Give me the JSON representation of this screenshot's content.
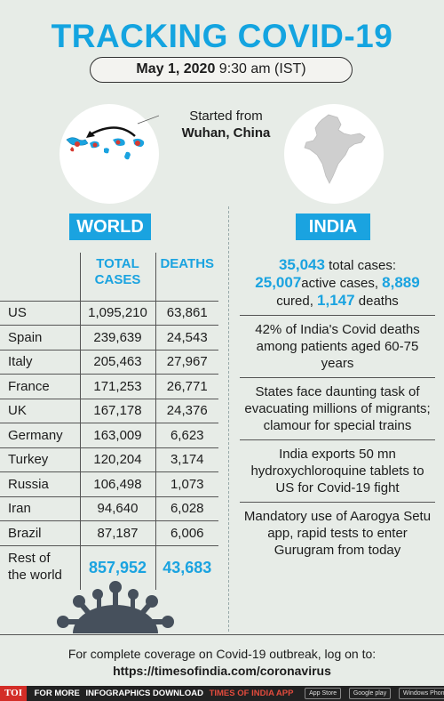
{
  "header": {
    "title": "TRACKING COVID-19",
    "date": "May 1, 2020",
    "time": "9:30 am (IST)"
  },
  "origin": {
    "line1": "Started from",
    "line2": "Wuhan, China"
  },
  "world": {
    "label": "WORLD",
    "columns": {
      "total_line1": "TOTAL",
      "total_line2": "CASES",
      "deaths": "DEATHS"
    },
    "rows": [
      {
        "country": "US",
        "total": "1,095,210",
        "deaths": "63,861"
      },
      {
        "country": "Spain",
        "total": "239,639",
        "deaths": "24,543"
      },
      {
        "country": "Italy",
        "total": "205,463",
        "deaths": "27,967"
      },
      {
        "country": "France",
        "total": "171,253",
        "deaths": "26,771"
      },
      {
        "country": "UK",
        "total": "167,178",
        "deaths": "24,376"
      },
      {
        "country": "Germany",
        "total": "163,009",
        "deaths": "6,623"
      },
      {
        "country": "Turkey",
        "total": "120,204",
        "deaths": "3,174"
      },
      {
        "country": "Russia",
        "total": "106,498",
        "deaths": "1,073"
      },
      {
        "country": "Iran",
        "total": "94,640",
        "deaths": "6,028"
      },
      {
        "country": "Brazil",
        "total": "87,187",
        "deaths": "6,006"
      }
    ],
    "rest": {
      "line1": "Rest of",
      "line2": "the world",
      "total": "857,952",
      "deaths": "43,683"
    }
  },
  "india": {
    "label": "INDIA",
    "total_cases": "35,043",
    "total_cases_label": " total cases:",
    "active_cases": "25,007",
    "active_cases_label": "active cases, ",
    "cured": "8,889",
    "cured_label": "cured, ",
    "deaths": "1,147",
    "deaths_label": " deaths",
    "facts": [
      "42% of India's Covid deaths among patients aged 60-75 years",
      "States face daunting task of evacuating millions of migrants; clamour for special trains",
      "India exports 50 mn hydroxychloroquine tablets to US for Covid-19 fight",
      "Mandatory use of Aarogya Setu app, rapid tests to enter Gurugram from today"
    ]
  },
  "footer": {
    "line1": "For complete coverage on Covid-19 outbreak, log on to:",
    "url": "https://timesofindia.com/coronavirus"
  },
  "bottom_bar": {
    "logo": "TOI",
    "text1": "FOR MORE",
    "text2": "INFOGRAPHICS DOWNLOAD",
    "text3": "TIMES OF INDIA APP",
    "app_store": "App Store",
    "google_play": "Google play",
    "windows": "Windows Phone"
  },
  "colors": {
    "accent": "#1aa3e0",
    "background": "#e7ece7"
  }
}
